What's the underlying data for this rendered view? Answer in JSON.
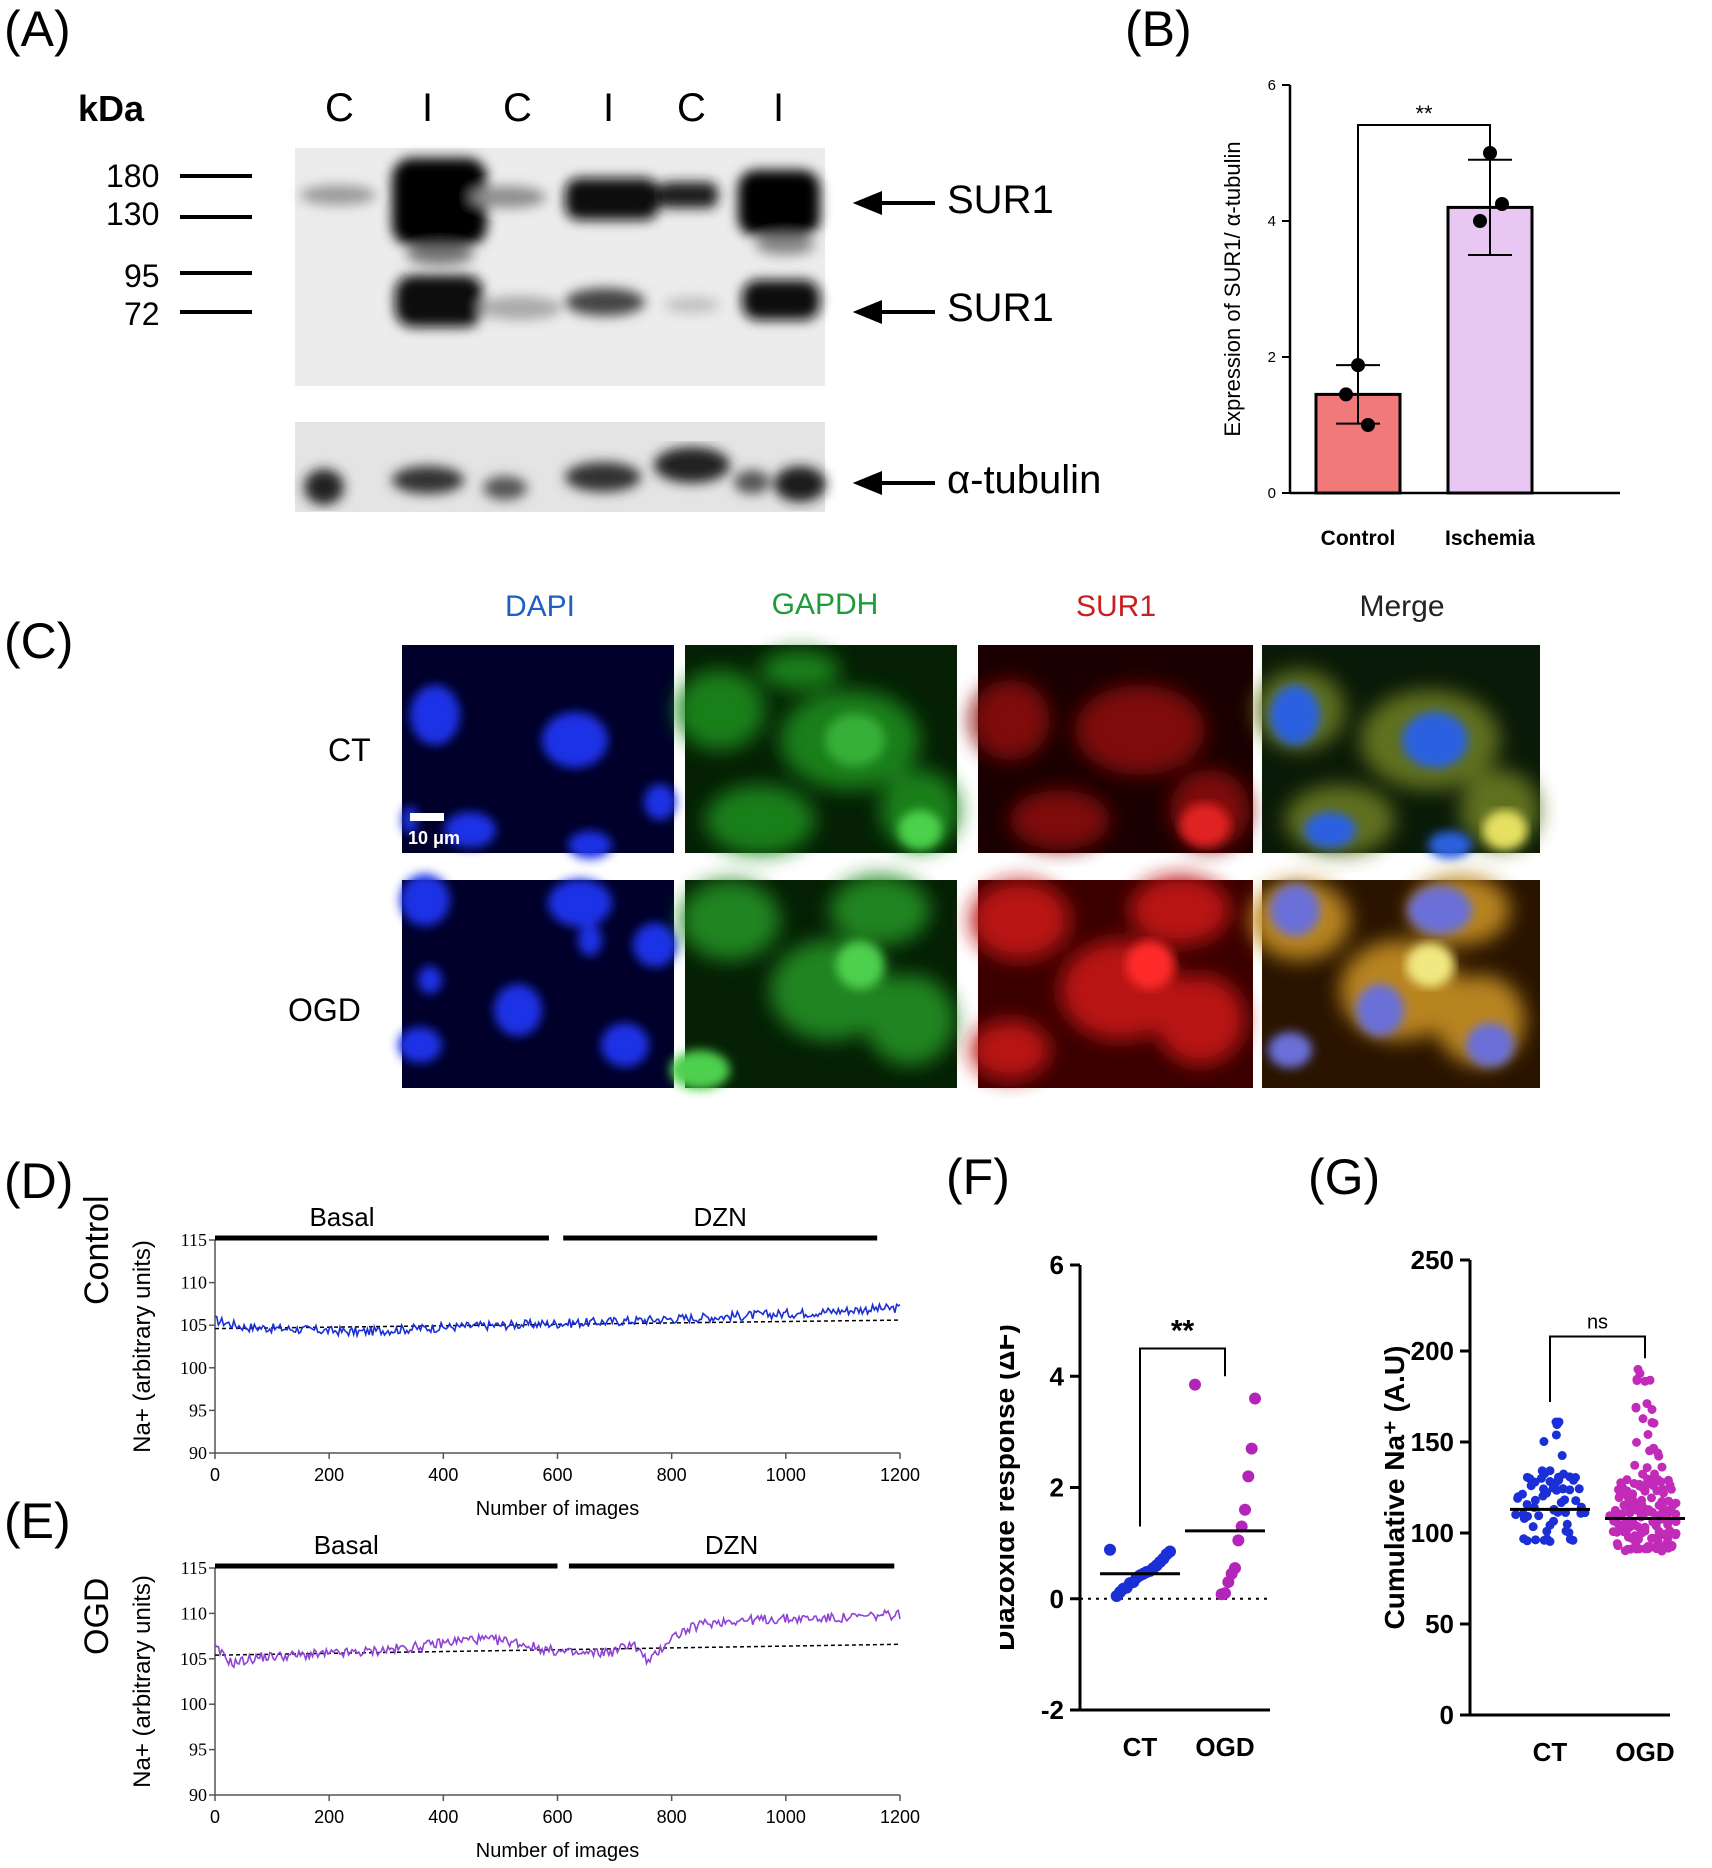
{
  "panels": {
    "A": {
      "letter": "(A)",
      "unit_label": "kDa",
      "lanes": [
        "C",
        "I",
        "C",
        "I",
        "C",
        "I"
      ],
      "markers": [
        "180",
        "130",
        "95",
        "72"
      ],
      "bands": [
        "SUR1",
        "SUR1",
        "α-tubulin"
      ]
    },
    "B": {
      "letter": "(B)"
    },
    "C": {
      "letter": "(C)",
      "channels": [
        {
          "name": "DAPI",
          "color": "#1f5fc4"
        },
        {
          "name": "GAPDH",
          "color": "#1e9b3a"
        },
        {
          "name": "SUR1",
          "color": "#c8201e"
        },
        {
          "name": "Merge",
          "color": "#222222"
        }
      ],
      "rows": [
        "CT",
        "OGD"
      ],
      "scale_bar": "10 μm"
    },
    "D": {
      "letter": "(D)",
      "row_label": "Control"
    },
    "E": {
      "letter": "(E)",
      "row_label": "OGD"
    },
    "F": {
      "letter": "(F)"
    },
    "G": {
      "letter": "(G)"
    }
  },
  "chart_data": [
    {
      "id": "B",
      "type": "bar",
      "categories": [
        "Control",
        "Ischemia"
      ],
      "values": [
        1.45,
        4.2
      ],
      "errors": [
        0.43,
        0.7
      ],
      "points": [
        [
          1.88,
          1.45,
          1.0
        ],
        [
          5.0,
          4.25,
          4.0
        ]
      ],
      "colors": [
        "#f07a7a",
        "#e8c8f3"
      ],
      "ylabel": "Expression of SUR1/ α-tubulin",
      "ylim": [
        0,
        6
      ],
      "yticks": [
        0,
        2,
        4,
        6
      ],
      "significance": "**"
    },
    {
      "id": "D",
      "type": "line",
      "xlabel": "Number of images",
      "ylabel": "Na+ (arbitrary units)",
      "xlim": [
        0,
        1200
      ],
      "ylim": [
        90,
        115
      ],
      "xticks": [
        0,
        200,
        400,
        600,
        800,
        1000,
        1200
      ],
      "yticks": [
        90,
        95,
        100,
        105,
        110,
        115
      ],
      "color": "#1a2fd6",
      "periods": [
        {
          "label": "Basal",
          "range": [
            0,
            585
          ]
        },
        {
          "label": "DZN",
          "range": [
            610,
            1160
          ]
        }
      ],
      "trace": [
        [
          0,
          105.6
        ],
        [
          50,
          104.8
        ],
        [
          150,
          104.5
        ],
        [
          250,
          104.2
        ],
        [
          350,
          104.6
        ],
        [
          450,
          104.9
        ],
        [
          550,
          105.1
        ],
        [
          650,
          105.3
        ],
        [
          750,
          105.6
        ],
        [
          850,
          105.9
        ],
        [
          950,
          106.2
        ],
        [
          1050,
          106.5
        ],
        [
          1150,
          106.9
        ],
        [
          1200,
          107.0
        ]
      ],
      "baseline": [
        [
          0,
          104.6
        ],
        [
          1200,
          105.6
        ]
      ]
    },
    {
      "id": "E",
      "type": "line",
      "xlabel": "Number of images",
      "ylabel": "Na+ (arbitrary units)",
      "xlim": [
        0,
        1200
      ],
      "ylim": [
        90,
        115
      ],
      "xticks": [
        0,
        200,
        400,
        600,
        800,
        1000,
        1200
      ],
      "yticks": [
        90,
        95,
        100,
        105,
        110,
        115
      ],
      "color": "#8f42d6",
      "periods": [
        {
          "label": "Basal",
          "range": [
            0,
            600
          ]
        },
        {
          "label": "DZN",
          "range": [
            620,
            1190
          ]
        }
      ],
      "trace": [
        [
          0,
          106.2
        ],
        [
          30,
          104.5
        ],
        [
          80,
          105.2
        ],
        [
          150,
          105.4
        ],
        [
          250,
          105.7
        ],
        [
          350,
          106.3
        ],
        [
          450,
          107.2
        ],
        [
          520,
          106.9
        ],
        [
          580,
          106.0
        ],
        [
          640,
          105.5
        ],
        [
          700,
          105.8
        ],
        [
          730,
          106.8
        ],
        [
          760,
          104.6
        ],
        [
          800,
          107.4
        ],
        [
          850,
          108.8
        ],
        [
          900,
          109.2
        ],
        [
          1000,
          109.4
        ],
        [
          1100,
          109.5
        ],
        [
          1200,
          109.9
        ]
      ],
      "baseline": [
        [
          0,
          105.4
        ],
        [
          1200,
          106.6
        ]
      ]
    },
    {
      "id": "F",
      "type": "scatter",
      "categories": [
        "CT",
        "OGD"
      ],
      "ylabel": "Diazoxide response (ΔF)",
      "ylim": [
        -2,
        6
      ],
      "yticks": [
        -2,
        0,
        2,
        4,
        6
      ],
      "significance": "**",
      "medians": [
        0.45,
        1.22
      ],
      "colors": [
        "#1a2fd6",
        "#b225b8"
      ],
      "points": [
        [
          0.88,
          0.85,
          0.8,
          0.72,
          0.66,
          0.6,
          0.55,
          0.5,
          0.48,
          0.45,
          0.42,
          0.38,
          0.3,
          0.28,
          0.2,
          0.18,
          0.12,
          0.05
        ],
        [
          3.85,
          3.6,
          2.7,
          2.2,
          1.6,
          1.3,
          1.05,
          0.55,
          0.45,
          0.3,
          0.1,
          0.08
        ]
      ]
    },
    {
      "id": "G",
      "type": "scatter",
      "categories": [
        "CT",
        "OGD"
      ],
      "ylabel": "Cumulative Na⁺ (A.U)",
      "ylim": [
        0,
        250
      ],
      "yticks": [
        0,
        50,
        100,
        150,
        200,
        250
      ],
      "significance": "ns",
      "medians": [
        113,
        108
      ],
      "colors": [
        "#1a2fd6",
        "#c12bb8"
      ],
      "ranges": [
        [
          92,
          162
        ],
        [
          90,
          192
        ]
      ],
      "counts": [
        70,
        160
      ]
    }
  ]
}
